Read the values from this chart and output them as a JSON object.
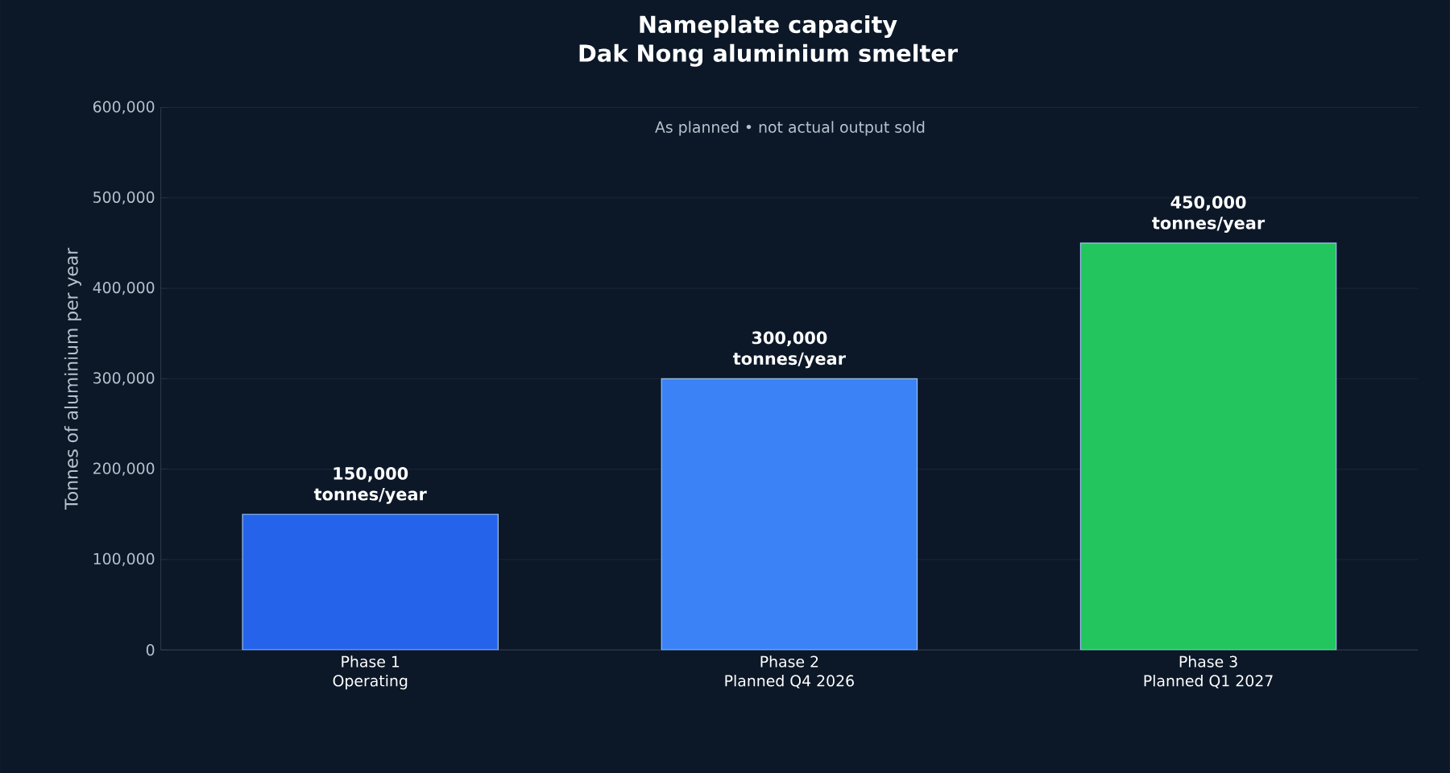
{
  "chart_data": {
    "type": "bar",
    "title": "Nameplate capacity\nDak Nong aluminium smelter",
    "subtitle": "As planned • not actual output sold",
    "ylabel": "Tonnes of aluminium per year",
    "categories": [
      "Phase 1\nOperating",
      "Phase 2\nPlanned Q4 2026",
      "Phase 3\nPlanned Q1 2027"
    ],
    "values": [
      150000,
      300000,
      450000
    ],
    "colors": [
      "#2563eb",
      "#3b82f6",
      "#22c55e"
    ],
    "value_labels": [
      "150,000\ntonnes/year",
      "300,000\ntonnes/year",
      "450,000\ntonnes/year"
    ],
    "ylim": [
      0,
      600000
    ],
    "yticks": [
      0,
      {
        "value": 100000,
        "label": "100,000"
      },
      {
        "value": 200000,
        "label": "200,000"
      },
      {
        "value": 300000,
        "label": "300,000"
      },
      {
        "value": 400000,
        "label": "400,000"
      },
      {
        "value": 500000,
        "label": "500,000"
      },
      {
        "value": 600000,
        "label": "600,000"
      }
    ],
    "grid": "y"
  }
}
